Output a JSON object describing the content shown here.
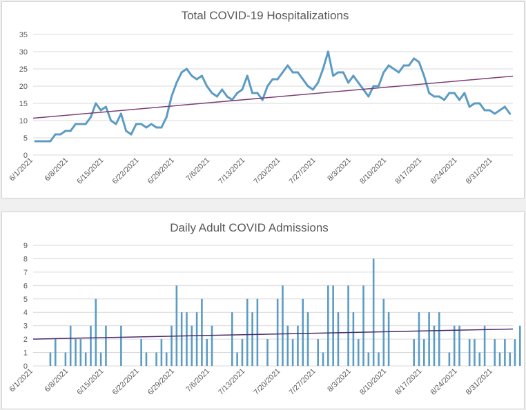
{
  "chart_data": [
    {
      "type": "line",
      "title": "Total COVID-19 Hospitalizations",
      "ylim": [
        0,
        35
      ],
      "yticks": [
        0,
        5,
        10,
        15,
        20,
        25,
        30,
        35
      ],
      "x_tick_labels": [
        "6/1/2021",
        "6/8/2021",
        "6/15/2021",
        "6/22/2021",
        "6/29/2021",
        "7/6/2021",
        "7/13/2021",
        "7/20/2021",
        "7/27/2021",
        "8/3/2021",
        "8/10/2021",
        "8/17/2021",
        "8/24/2021",
        "8/31/2021"
      ],
      "x_start": "6/1/2021",
      "grid": true,
      "series": [
        {
          "color": "#5b9bc4",
          "values": [
            4,
            4,
            4,
            4,
            6,
            6,
            7,
            7,
            9,
            9,
            9,
            11,
            15,
            13,
            14,
            10,
            9,
            12,
            7,
            6,
            9,
            9,
            8,
            9,
            8,
            8,
            11,
            17,
            21,
            24,
            25,
            23,
            22,
            23,
            20,
            18,
            17,
            19,
            17,
            16,
            18,
            19,
            23,
            18,
            18,
            16,
            20,
            22,
            22,
            24,
            26,
            24,
            24,
            22,
            20,
            19,
            21,
            25,
            30,
            23,
            24,
            24,
            21,
            23,
            21,
            19,
            17,
            20,
            20,
            24,
            26,
            25,
            24,
            26,
            26,
            28,
            27,
            23,
            18,
            17,
            17,
            16,
            18,
            18,
            16,
            18,
            14,
            15,
            15,
            13,
            13,
            12,
            13,
            14,
            12
          ]
        }
      ],
      "trendline": {
        "color": "#7b3f74",
        "start": 10.7,
        "end": 22.9
      }
    },
    {
      "type": "bar",
      "title": "Daily Adult COVID Admissions",
      "ylim": [
        0,
        9
      ],
      "yticks": [
        0,
        1,
        2,
        3,
        4,
        5,
        6,
        7,
        8,
        9
      ],
      "x_tick_labels": [
        "6/1/2021",
        "6/8/2021",
        "6/15/2021",
        "6/22/2021",
        "6/29/2021",
        "7/6/2021",
        "7/13/2021",
        "7/20/2021",
        "7/27/2021",
        "8/3/2021",
        "8/10/2021",
        "8/17/2021",
        "8/24/2021",
        "8/31/2021"
      ],
      "x_start": "6/1/2021",
      "grid": true,
      "series": [
        {
          "color": "#5b9bc4",
          "values": [
            0,
            0,
            0,
            1,
            2,
            0,
            1,
            3,
            2,
            2,
            1,
            3,
            5,
            1,
            3,
            0,
            0,
            3,
            0,
            0,
            0,
            2,
            1,
            0,
            1,
            2,
            1,
            3,
            6,
            4,
            4,
            3,
            4,
            5,
            2,
            3,
            0,
            0,
            0,
            4,
            1,
            2,
            5,
            4,
            5,
            0,
            2,
            0,
            5,
            6,
            3,
            2,
            3,
            5,
            4,
            0,
            2,
            1,
            6,
            6,
            4,
            0,
            6,
            4,
            2,
            6,
            1,
            8,
            1,
            5,
            4,
            0,
            0,
            0,
            0,
            2,
            4,
            2,
            4,
            3,
            4,
            0,
            1,
            3,
            3,
            0,
            2,
            2,
            1,
            3,
            0,
            2,
            1,
            2,
            1,
            2,
            3,
            3
          ]
        }
      ],
      "trendline": {
        "color": "#4b2a6a",
        "start": 2.0,
        "end": 2.75
      }
    }
  ]
}
